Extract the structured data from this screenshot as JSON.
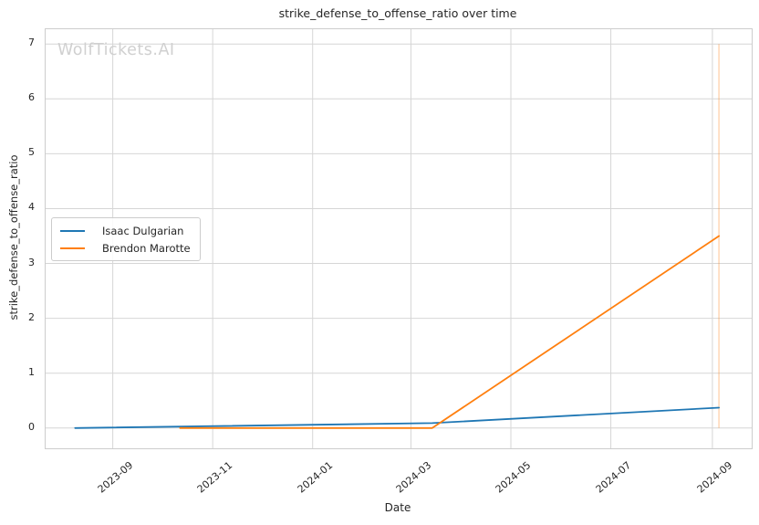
{
  "chart_data": {
    "type": "line",
    "title": "strike_defense_to_offense_ratio over time",
    "xlabel": "Date",
    "ylabel": "strike_defense_to_offense_ratio",
    "watermark": "WolfTickets.AI",
    "grid": true,
    "grid_color": "#d6d6d6",
    "legend_position": "center left",
    "xlim": [
      "2023-07-22",
      "2024-09-25"
    ],
    "ylim": [
      -0.37,
      7.27
    ],
    "y_ticks": [
      0,
      1,
      2,
      3,
      4,
      5,
      6,
      7
    ],
    "x_ticks": [
      {
        "date": "2023-09-01",
        "label": "2023-09"
      },
      {
        "date": "2023-11-01",
        "label": "2023-11"
      },
      {
        "date": "2024-01-01",
        "label": "2024-01"
      },
      {
        "date": "2024-03-01",
        "label": "2024-03"
      },
      {
        "date": "2024-05-01",
        "label": "2024-05"
      },
      {
        "date": "2024-07-01",
        "label": "2024-07"
      },
      {
        "date": "2024-09-01",
        "label": "2024-09"
      }
    ],
    "series": [
      {
        "name": "Isaac Dulgarian",
        "color": "#1f77b4",
        "x": [
          "2023-08-09",
          "2024-03-14",
          "2024-09-05"
        ],
        "y": [
          0.0,
          0.09,
          0.37
        ]
      },
      {
        "name": "Brendon Marotte",
        "color": "#ff7f0e",
        "x": [
          "2023-10-12",
          "2024-03-14",
          "2024-09-05"
        ],
        "y": [
          0.0,
          0.0,
          3.5
        ]
      }
    ],
    "vline": {
      "x": "2024-09-05",
      "ymin": 0,
      "ymax": 7,
      "color": "#ff7f0e",
      "opacity": 0.3
    }
  }
}
